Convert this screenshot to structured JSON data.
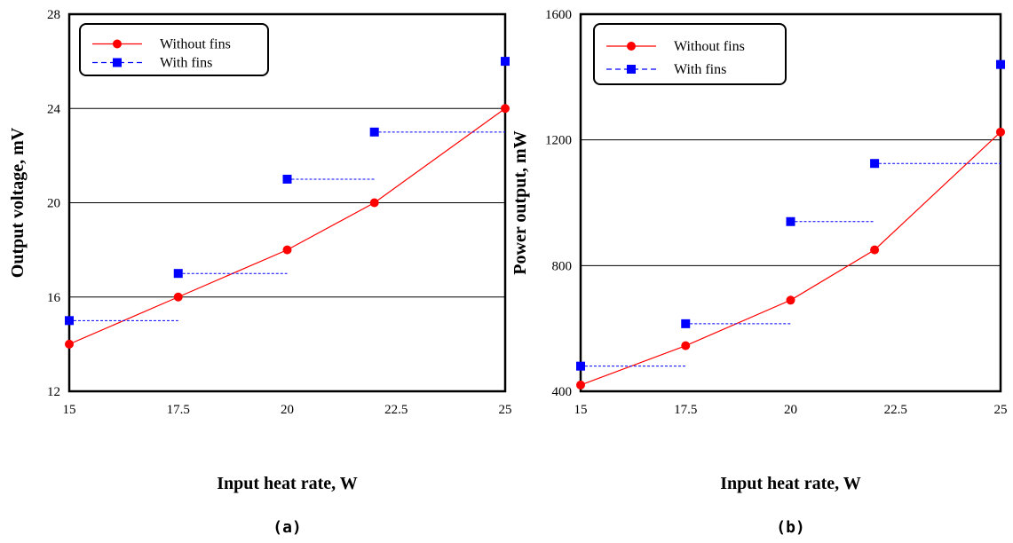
{
  "chart_data": [
    {
      "type": "line",
      "panel_label": "(a)",
      "xlabel": "Input heat rate, W",
      "ylabel": "Output voltage, mV",
      "xlim": [
        15,
        25
      ],
      "ylim": [
        12,
        28
      ],
      "x_ticks": [
        "15",
        "17.5",
        "20",
        "22.5",
        "25"
      ],
      "y_ticks": [
        "12",
        "16",
        "20",
        "24",
        "28"
      ],
      "grid": "horizontal",
      "legend_position": "top-left",
      "series": [
        {
          "name": "Without fins",
          "color": "#ff0000",
          "marker": "circle",
          "style": "solid",
          "x": [
            15,
            17.5,
            20,
            22,
            25
          ],
          "y": [
            14,
            16,
            18,
            20,
            24
          ]
        },
        {
          "name": "With fins",
          "color": "#0000ff",
          "marker": "square",
          "style": "step-dashed",
          "x": [
            15,
            17.5,
            20,
            22,
            25
          ],
          "y": [
            15,
            17,
            21,
            23,
            26
          ]
        }
      ]
    },
    {
      "type": "line",
      "panel_label": "(b)",
      "xlabel": "Input heat rate, W",
      "ylabel": "Power output, mW",
      "xlim": [
        15,
        25
      ],
      "ylim": [
        400,
        1600
      ],
      "x_ticks": [
        "15",
        "17.5",
        "20",
        "22.5",
        "25"
      ],
      "y_ticks": [
        "400",
        "800",
        "1200",
        "1600"
      ],
      "grid": "horizontal",
      "legend_position": "top-left",
      "series": [
        {
          "name": "Without fins",
          "color": "#ff0000",
          "marker": "circle",
          "style": "solid",
          "x": [
            15,
            17.5,
            20,
            22,
            25
          ],
          "y": [
            420,
            545,
            690,
            850,
            1225
          ]
        },
        {
          "name": "With fins",
          "color": "#0000ff",
          "marker": "square",
          "style": "step-dashed",
          "x": [
            15,
            17.5,
            20,
            22,
            25
          ],
          "y": [
            480,
            615,
            940,
            1125,
            1440
          ]
        }
      ]
    }
  ]
}
